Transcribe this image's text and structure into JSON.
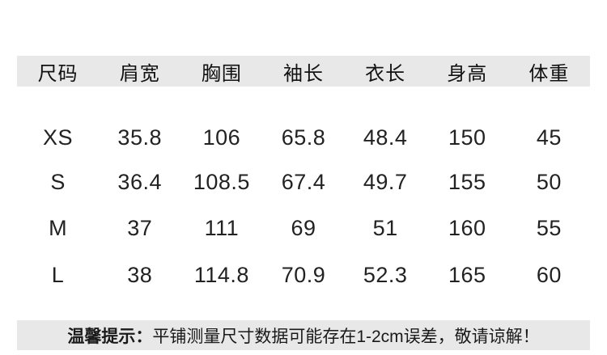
{
  "chart_data": {
    "type": "table",
    "columns": [
      "尺码",
      "肩宽",
      "胸围",
      "袖长",
      "衣长",
      "身高",
      "体重"
    ],
    "rows": [
      [
        "XS",
        "35.8",
        "106",
        "65.8",
        "48.4",
        "150",
        "45"
      ],
      [
        "S",
        "36.4",
        "108.5",
        "67.4",
        "49.7",
        "155",
        "50"
      ],
      [
        "M",
        "37",
        "111",
        "69",
        "51",
        "160",
        "55"
      ],
      [
        "L",
        "38",
        "114.8",
        "70.9",
        "52.3",
        "165",
        "60"
      ]
    ],
    "note_label": "温馨提示：",
    "note_text": "平铺测量尺寸数据可能存在1-2cm误差，敬请谅解！"
  },
  "colors": {
    "band_bg": "#e8e8e8",
    "text_primary": "#1a1a1a",
    "page_bg": "#ffffff"
  }
}
